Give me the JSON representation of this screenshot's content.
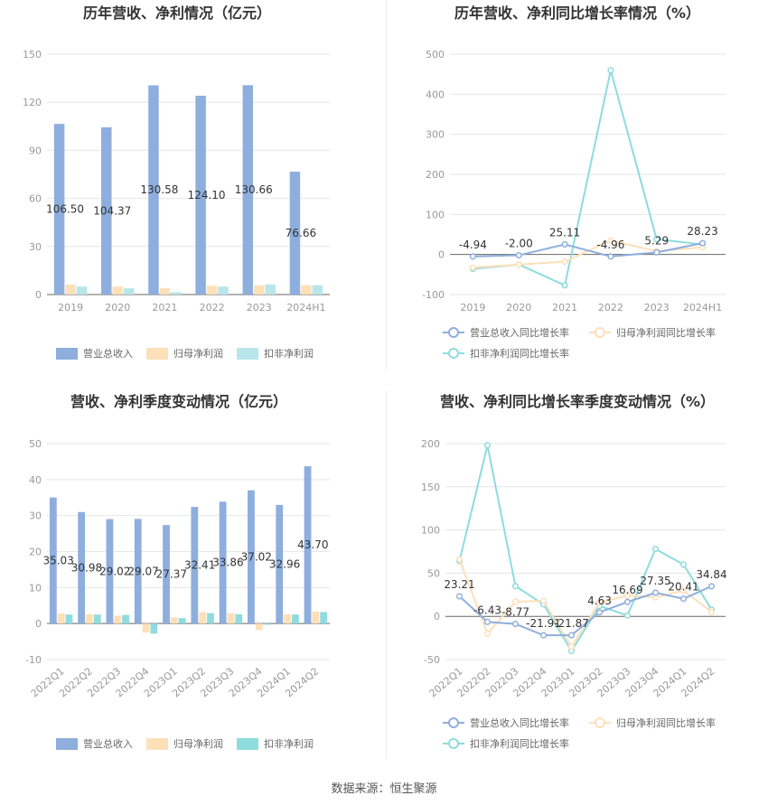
{
  "footer": {
    "source": "数据来源：恒生聚源"
  },
  "chart_data": [
    {
      "type": "bar",
      "title": "历年营收、净利情况（亿元）",
      "categories": [
        "2019",
        "2020",
        "2021",
        "2022",
        "2023",
        "2024H1"
      ],
      "ylim": [
        0,
        150
      ],
      "yticks": [
        0,
        30,
        60,
        90,
        120,
        150
      ],
      "grid": true,
      "legend_position": "bottom",
      "series": [
        {
          "name": "营业总收入",
          "color": "#8eaedd",
          "values": [
            106.5,
            104.37,
            130.58,
            124.1,
            130.66,
            76.66
          ],
          "labels": [
            "106.50",
            "104.37",
            "130.58",
            "124.10",
            "130.66",
            "76.66"
          ]
        },
        {
          "name": "归母净利润",
          "color": "#fde0b8",
          "values": [
            6.2,
            5.0,
            4.0,
            5.5,
            5.8,
            5.8
          ]
        },
        {
          "name": "扣非净利润",
          "color": "#b8e6ea",
          "values": [
            5.0,
            3.9,
            1.5,
            5.0,
            6.3,
            5.8
          ]
        }
      ]
    },
    {
      "type": "line",
      "title": "历年营收、净利同比增长率情况（%）",
      "categories": [
        "2019",
        "2020",
        "2021",
        "2022",
        "2023",
        "2024H1"
      ],
      "ylim": [
        -100,
        500
      ],
      "yticks": [
        -100,
        0,
        100,
        200,
        300,
        400,
        500
      ],
      "grid": true,
      "legend_position": "bottom",
      "series": [
        {
          "name": "营业总收入同比增长率",
          "color": "#8eaedd",
          "values": [
            -4.94,
            -2.0,
            25.11,
            -4.96,
            5.29,
            28.23
          ],
          "labels": [
            "-4.94",
            "-2.00",
            "25.11",
            "-4.96",
            "5.29",
            "28.23"
          ]
        },
        {
          "name": "归母净利润同比增长率",
          "color": "#fde0b8",
          "values": [
            -33,
            -25,
            -18,
            35,
            8,
            18
          ]
        },
        {
          "name": "扣非净利润同比增长率",
          "color": "#8fdbde",
          "values": [
            -36,
            -25,
            -77,
            460,
            38,
            25
          ]
        }
      ]
    },
    {
      "type": "bar",
      "title": "营收、净利季度变动情况（亿元）",
      "categories": [
        "2022Q1",
        "2022Q2",
        "2022Q3",
        "2022Q4",
        "2023Q1",
        "2023Q2",
        "2023Q3",
        "2023Q4",
        "2024Q1",
        "2024Q2"
      ],
      "ylim": [
        -10,
        50
      ],
      "yticks": [
        -10,
        0,
        10,
        20,
        30,
        40,
        50
      ],
      "grid": true,
      "legend_position": "bottom",
      "series": [
        {
          "name": "营业总收入",
          "color": "#8eaedd",
          "values": [
            35.03,
            30.98,
            29.02,
            29.07,
            27.37,
            32.41,
            33.86,
            37.02,
            32.96,
            43.7
          ],
          "labels": [
            "35.03",
            "30.98",
            "29.02",
            "29.07",
            "27.37",
            "32.41",
            "33.86",
            "37.02",
            "32.96",
            "43.70"
          ]
        },
        {
          "name": "归母净利润",
          "color": "#fde0b8",
          "values": [
            2.8,
            2.6,
            2.2,
            -2.5,
            1.7,
            3.2,
            2.9,
            -1.8,
            2.6,
            3.3
          ]
        },
        {
          "name": "扣非净利润",
          "color": "#8fdbde",
          "values": [
            2.5,
            2.5,
            2.4,
            -2.8,
            1.5,
            2.9,
            2.6,
            -0.3,
            2.5,
            3.2
          ]
        }
      ]
    },
    {
      "type": "line",
      "title": "营收、净利同比增长率季度变动情况（%）",
      "categories": [
        "2022Q1",
        "2022Q2",
        "2022Q3",
        "2022Q4",
        "2023Q1",
        "2023Q2",
        "2023Q3",
        "2023Q4",
        "2024Q1",
        "2024Q2"
      ],
      "ylim": [
        -50,
        200
      ],
      "yticks": [
        -50,
        0,
        50,
        100,
        150,
        200
      ],
      "grid": true,
      "legend_position": "bottom",
      "series": [
        {
          "name": "营业总收入同比增长率",
          "color": "#8eaedd",
          "values": [
            23.21,
            -6.43,
            -8.77,
            -21.91,
            -21.87,
            4.63,
            16.69,
            27.35,
            20.41,
            34.84
          ],
          "labels": [
            "23.21",
            "-6.43",
            "-8.77",
            "-21.91",
            "-21.87",
            "4.63",
            "16.69",
            "27.35",
            "20.41",
            "34.84"
          ]
        },
        {
          "name": "归母净利润同比增长率",
          "color": "#fde0b8",
          "values": [
            66,
            -20,
            17,
            18,
            -35,
            16,
            24,
            22,
            30,
            5
          ]
        },
        {
          "name": "扣非净利润同比增长率",
          "color": "#8fdbde",
          "values": [
            64,
            198,
            35,
            14,
            -40,
            12,
            1,
            78,
            60,
            8
          ]
        }
      ]
    }
  ]
}
